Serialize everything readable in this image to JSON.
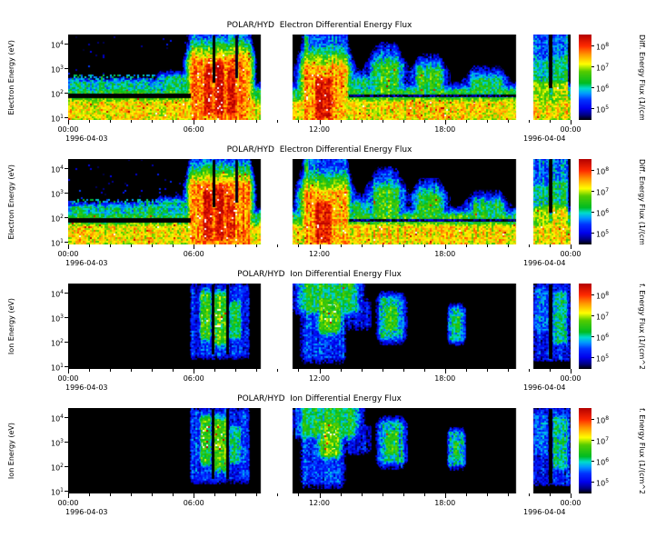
{
  "figure": {
    "background": "#ffffff"
  },
  "chart_data": {
    "type": "heatmap",
    "description": "Four stacked time-energy spectrogram panels of POLAR/HYD differential energy flux for 1996-04-03 to 1996-04-04",
    "x": {
      "ticks": [
        "00:00",
        "06:00",
        "12:00",
        "18:00",
        "00:00"
      ],
      "hours": [
        0,
        6,
        12,
        18,
        24
      ],
      "date_left": "1996-04-03",
      "date_right": "1996-04-04",
      "range_hours": [
        0,
        24
      ]
    },
    "y": {
      "tick_base": "10",
      "tick_exponents": [
        4,
        3,
        2,
        1
      ],
      "log_range": [
        0.9,
        4.35
      ]
    },
    "colorbar": {
      "tick_base": "10",
      "tick_exponents": [
        8,
        7,
        6,
        5
      ],
      "log_range": [
        4.45,
        8.5
      ],
      "overflow_color": "#ffffff",
      "stops": [
        [
          4.45,
          "#000000"
        ],
        [
          4.7,
          "#000088"
        ],
        [
          5.0,
          "#0000ee"
        ],
        [
          5.4,
          "#0033ff"
        ],
        [
          5.7,
          "#0099ff"
        ],
        [
          5.95,
          "#00ddcc"
        ],
        [
          6.2,
          "#00bb22"
        ],
        [
          6.75,
          "#55cc00"
        ],
        [
          7.1,
          "#ffff00"
        ],
        [
          7.55,
          "#ff9900"
        ],
        [
          7.95,
          "#ff2a00"
        ],
        [
          8.5,
          "#b30000"
        ]
      ]
    },
    "gaps_hours": [
      [
        9.2,
        10.7
      ],
      [
        21.4,
        22.2
      ]
    ],
    "panels": [
      {
        "title": "POLAR/HYD  Electron Differential Energy Flux",
        "ylabel": "Electron Energy (eV)",
        "colorbar_label": "Diff. Energy Flux (1/(cm",
        "species": "electron"
      },
      {
        "title": "POLAR/HYD  Electron Differential Energy Flux",
        "ylabel": "Electron Energy (eV)",
        "colorbar_label": "Diff. Energy Flux (1/(cm",
        "species": "electron"
      },
      {
        "title": "POLAR/HYD  Ion Differential Energy Flux",
        "ylabel": "Ion Energy (eV)",
        "colorbar_label": "f. Energy Flux (1/(cm^2",
        "species": "ion"
      },
      {
        "title": "POLAR/HYD  Ion Differential Energy Flux",
        "ylabel": "Ion Energy (eV)",
        "colorbar_label": "f. Energy Flux (1/(cm^2",
        "species": "ion"
      }
    ],
    "features_electron": [
      {
        "t": [
          0,
          24
        ],
        "e": [
          0.95,
          1.6
        ],
        "peak": 7.2,
        "sx": 0.05,
        "sy": 0.25
      },
      {
        "t": [
          0,
          24
        ],
        "e": [
          0.95,
          2.05
        ],
        "peak": 6.35,
        "sx": 0.05,
        "sy": 0.22
      },
      {
        "t": [
          0,
          6.2
        ],
        "e": [
          0.95,
          2.4
        ],
        "peak": 6.0,
        "sx": 0.1,
        "sy": 0.15
      },
      {
        "t": [
          0,
          6.2
        ],
        "e": [
          2.3,
          2.72
        ],
        "peak": 5.8,
        "p": 0.4
      },
      {
        "t": [
          0,
          5.8
        ],
        "e": [
          2.75,
          4.3
        ],
        "peak": 4.9,
        "p": 0.02
      },
      {
        "t": [
          4.4,
          5.9
        ],
        "e": [
          0.95,
          2.6
        ],
        "peak": 6.0,
        "sx": 0.2,
        "sy": 0.2
      },
      {
        "t": [
          5.85,
          8.65
        ],
        "e": [
          0.95,
          3.3
        ],
        "peak": 7.6,
        "sx": 0.12,
        "sy": 0.45
      },
      {
        "t": [
          6.5,
          6.85
        ],
        "e": [
          1.2,
          3.0
        ],
        "peak": 8.2,
        "sx": 0.08,
        "sy": 0.3
      },
      {
        "t": [
          7.05,
          7.4
        ],
        "e": [
          1.2,
          3.1
        ],
        "peak": 8.25,
        "sx": 0.08,
        "sy": 0.3
      },
      {
        "t": [
          7.6,
          7.95
        ],
        "e": [
          1.2,
          2.9
        ],
        "peak": 8.1,
        "sx": 0.08,
        "sy": 0.3
      },
      {
        "t": [
          5.85,
          8.65
        ],
        "e": [
          3.1,
          4.25
        ],
        "peak": 5.4,
        "sx": 0.1,
        "sy": 0.35
      },
      {
        "t": [
          11.3,
          13.25
        ],
        "e": [
          0.95,
          3.0
        ],
        "peak": 7.5,
        "sx": 0.18,
        "sy": 0.5
      },
      {
        "t": [
          11.85,
          12.55
        ],
        "e": [
          1.05,
          2.5
        ],
        "peak": 8.25,
        "sx": 0.12,
        "sy": 0.3
      },
      {
        "t": [
          11.3,
          13.25
        ],
        "e": [
          2.8,
          4.25
        ],
        "peak": 5.5,
        "sx": 0.15,
        "sy": 0.4
      },
      {
        "t": [
          11.3,
          11.5
        ],
        "e": [
          0.95,
          4.25
        ],
        "peak": 6.2,
        "sx": 0.05,
        "sy": 0.1
      },
      {
        "t": [
          13.25,
          14.3
        ],
        "e": [
          0.95,
          2.5
        ],
        "peak": 6.1,
        "sx": 0.4,
        "sy": 0.3
      },
      {
        "t": [
          14.7,
          15.7
        ],
        "e": [
          0.95,
          3.1
        ],
        "peak": 6.45,
        "sx": 0.3,
        "sy": 0.45
      },
      {
        "t": [
          14.8,
          15.6
        ],
        "e": [
          3.0,
          3.85
        ],
        "peak": 5.15,
        "sx": 0.25,
        "sy": 0.3
      },
      {
        "t": [
          16.8,
          17.7
        ],
        "e": [
          0.95,
          2.85
        ],
        "peak": 6.35,
        "sx": 0.3,
        "sy": 0.4
      },
      {
        "t": [
          19.4,
          20.6
        ],
        "e": [
          0.95,
          2.5
        ],
        "peak": 6.25,
        "sx": 0.35,
        "sy": 0.35
      },
      {
        "t": [
          22.25,
          22.95
        ],
        "e": [
          0.95,
          4.3
        ],
        "peak": 5.5,
        "sx": 0.04,
        "sy": 0.15
      },
      {
        "t": [
          22.25,
          22.95
        ],
        "e": [
          0.95,
          2.3
        ],
        "peak": 6.9,
        "sx": 0.04,
        "sy": 0.25
      },
      {
        "t": [
          22.25,
          22.95
        ],
        "e": [
          1.8,
          3.2
        ],
        "peak": 6.05,
        "sx": 0.04,
        "sy": 0.3
      },
      {
        "t": [
          23.15,
          23.85
        ],
        "e": [
          0.95,
          4.3
        ],
        "peak": 5.6,
        "sx": 0.04,
        "sy": 0.15
      },
      {
        "t": [
          23.15,
          23.85
        ],
        "e": [
          0.95,
          2.3
        ],
        "peak": 7.0,
        "sx": 0.04,
        "sy": 0.25
      },
      {
        "t": [
          23.15,
          23.85
        ],
        "e": [
          1.8,
          3.4
        ],
        "peak": 6.1,
        "sx": 0.04,
        "sy": 0.3
      }
    ],
    "cuts_electron": [
      {
        "t": [
          0,
          5.85
        ],
        "e": [
          1.78,
          1.95
        ],
        "level": 4.3
      },
      {
        "t": [
          13.4,
          21.4
        ],
        "e": [
          1.82,
          1.93
        ],
        "level": 4.6
      },
      {
        "t": [
          6.9,
          7.02
        ],
        "e": [
          2.4,
          4.3
        ],
        "level": 4.4
      },
      {
        "t": [
          8.0,
          8.12
        ],
        "e": [
          2.6,
          4.3
        ],
        "level": 4.5
      },
      {
        "t": [
          22.95,
          23.15
        ],
        "e": [
          2.2,
          4.3
        ],
        "level": 4.4
      }
    ],
    "features_ion": [
      {
        "t": [
          5.9,
          8.6
        ],
        "e": [
          1.5,
          4.2
        ],
        "peak": 5.25,
        "sx": 0.1,
        "sy": 0.3
      },
      {
        "t": [
          6.35,
          6.75
        ],
        "e": [
          2.2,
          3.9
        ],
        "peak": 6.4,
        "sx": 0.1,
        "sy": 0.25
      },
      {
        "t": [
          7.0,
          7.5
        ],
        "e": [
          2.0,
          3.8
        ],
        "peak": 6.6,
        "sx": 0.1,
        "sy": 0.25
      },
      {
        "t": [
          7.75,
          8.2
        ],
        "e": [
          2.2,
          3.5
        ],
        "peak": 6.2,
        "sx": 0.1,
        "sy": 0.2
      },
      {
        "t": [
          6.4,
          6.7
        ],
        "e": [
          2.6,
          3.6
        ],
        "peak": 9.0,
        "p": 0.08
      },
      {
        "t": [
          7.05,
          7.45
        ],
        "e": [
          2.6,
          3.5
        ],
        "peak": 9.0,
        "p": 0.1
      },
      {
        "t": [
          11.25,
          13.6
        ],
        "e": [
          3.3,
          4.3
        ],
        "peak": 6.25,
        "sx": 0.35,
        "sy": 0.3
      },
      {
        "t": [
          11.25,
          13.1
        ],
        "e": [
          1.4,
          3.5
        ],
        "peak": 5.3,
        "sx": 0.25,
        "sy": 0.4
      },
      {
        "t": [
          12.1,
          12.9
        ],
        "e": [
          2.5,
          3.7
        ],
        "peak": 6.6,
        "sx": 0.2,
        "sy": 0.25
      },
      {
        "t": [
          12.2,
          12.8
        ],
        "e": [
          2.7,
          3.5
        ],
        "peak": 9.0,
        "p": 0.1
      },
      {
        "t": [
          13.0,
          14.3
        ],
        "e": [
          2.6,
          3.6
        ],
        "peak": 5.0,
        "sx": 0.4,
        "sy": 0.3
      },
      {
        "t": [
          11.25,
          11.4
        ],
        "e": [
          1.3,
          4.3
        ],
        "peak": 5.4,
        "sx": 0.03,
        "sy": 0.1
      },
      {
        "t": [
          14.95,
          15.95
        ],
        "e": [
          2.2,
          3.7
        ],
        "peak": 5.9,
        "sx": 0.2,
        "sy": 0.25
      },
      {
        "t": [
          15.2,
          15.7
        ],
        "e": [
          2.5,
          3.4
        ],
        "peak": 6.4,
        "sx": 0.15,
        "sy": 0.2
      },
      {
        "t": [
          18.25,
          18.85
        ],
        "e": [
          2.1,
          3.3
        ],
        "peak": 5.9,
        "sx": 0.12,
        "sy": 0.2
      },
      {
        "t": [
          18.4,
          18.7
        ],
        "e": [
          2.4,
          3.0
        ],
        "peak": 6.3,
        "sx": 0.1,
        "sy": 0.15
      },
      {
        "t": [
          22.25,
          23.95
        ],
        "e": [
          1.3,
          4.3
        ],
        "peak": 5.15,
        "sx": 0.06,
        "sy": 0.15
      },
      {
        "t": [
          23.2,
          23.8
        ],
        "e": [
          2.0,
          3.9
        ],
        "peak": 6.0,
        "sx": 0.08,
        "sy": 0.25
      },
      {
        "t": [
          22.3,
          22.9
        ],
        "e": [
          2.5,
          4.1
        ],
        "peak": 5.6,
        "sx": 0.08,
        "sy": 0.2
      }
    ],
    "cuts_ion": [
      {
        "t": [
          6.85,
          7.0
        ],
        "e": [
          1.5,
          4.3
        ],
        "level": 4.3
      },
      {
        "t": [
          7.55,
          7.7
        ],
        "e": [
          1.5,
          4.3
        ],
        "level": 4.4
      },
      {
        "t": [
          22.95,
          23.15
        ],
        "e": [
          1.3,
          4.3
        ],
        "level": 4.4
      }
    ]
  }
}
